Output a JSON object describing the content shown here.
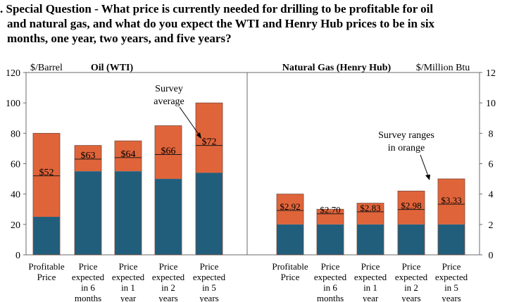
{
  "title": {
    "line1": ". Special Question - What price is currently needed for drilling to be profitable for oil",
    "line2": "and natural gas, and what do you expect the WTI and Henry Hub prices to be in six",
    "line3": "months, one year, two years, and five years?"
  },
  "colors": {
    "range": "#e0643a",
    "base": "#215e7c",
    "text": "#000000"
  },
  "chart_data": [
    {
      "type": "bar",
      "title": "Oil (WTI)",
      "ylabel": "$/Barrel",
      "ylim": [
        0,
        120
      ],
      "yticks": [
        0,
        20,
        40,
        60,
        80,
        100,
        120
      ],
      "categories": [
        [
          "Profitable",
          "Price"
        ],
        [
          "Price",
          "expected",
          "in 6",
          "months"
        ],
        [
          "Price",
          "expected",
          "in 1",
          "year"
        ],
        [
          "Price",
          "expected",
          "in 2",
          "years"
        ],
        [
          "Price",
          "expected",
          "in 5",
          "years"
        ]
      ],
      "range_low": [
        25,
        55,
        55,
        50,
        54
      ],
      "range_high": [
        80,
        72,
        75,
        85,
        100
      ],
      "average": [
        52,
        63,
        64,
        66,
        72
      ],
      "average_labels": [
        "$52",
        "$63",
        "$64",
        "$66",
        "$72"
      ],
      "annotation": [
        "Survey",
        "average"
      ]
    },
    {
      "type": "bar",
      "title": "Natural Gas (Henry Hub)",
      "ylabel": "$/Million Btu",
      "ylim": [
        0,
        12
      ],
      "yticks": [
        0,
        2,
        4,
        6,
        8,
        10,
        12
      ],
      "categories": [
        [
          "Profitable",
          "Price"
        ],
        [
          "Price",
          "expected",
          "in 6",
          "months"
        ],
        [
          "Price",
          "expected",
          "in 1",
          "year"
        ],
        [
          "Price",
          "expected",
          "in 2",
          "years"
        ],
        [
          "Price",
          "expected",
          "in 5",
          "years"
        ]
      ],
      "range_low": [
        2.0,
        2.0,
        2.0,
        2.0,
        2.0
      ],
      "range_high": [
        4.0,
        3.0,
        3.4,
        4.2,
        5.0
      ],
      "average": [
        2.92,
        2.7,
        2.83,
        2.98,
        3.33
      ],
      "average_labels": [
        "$2.92",
        "$2.70",
        "$2.83",
        "$2.98",
        "$3.33"
      ],
      "annotation": [
        "Survey ranges",
        "in orange"
      ]
    }
  ]
}
